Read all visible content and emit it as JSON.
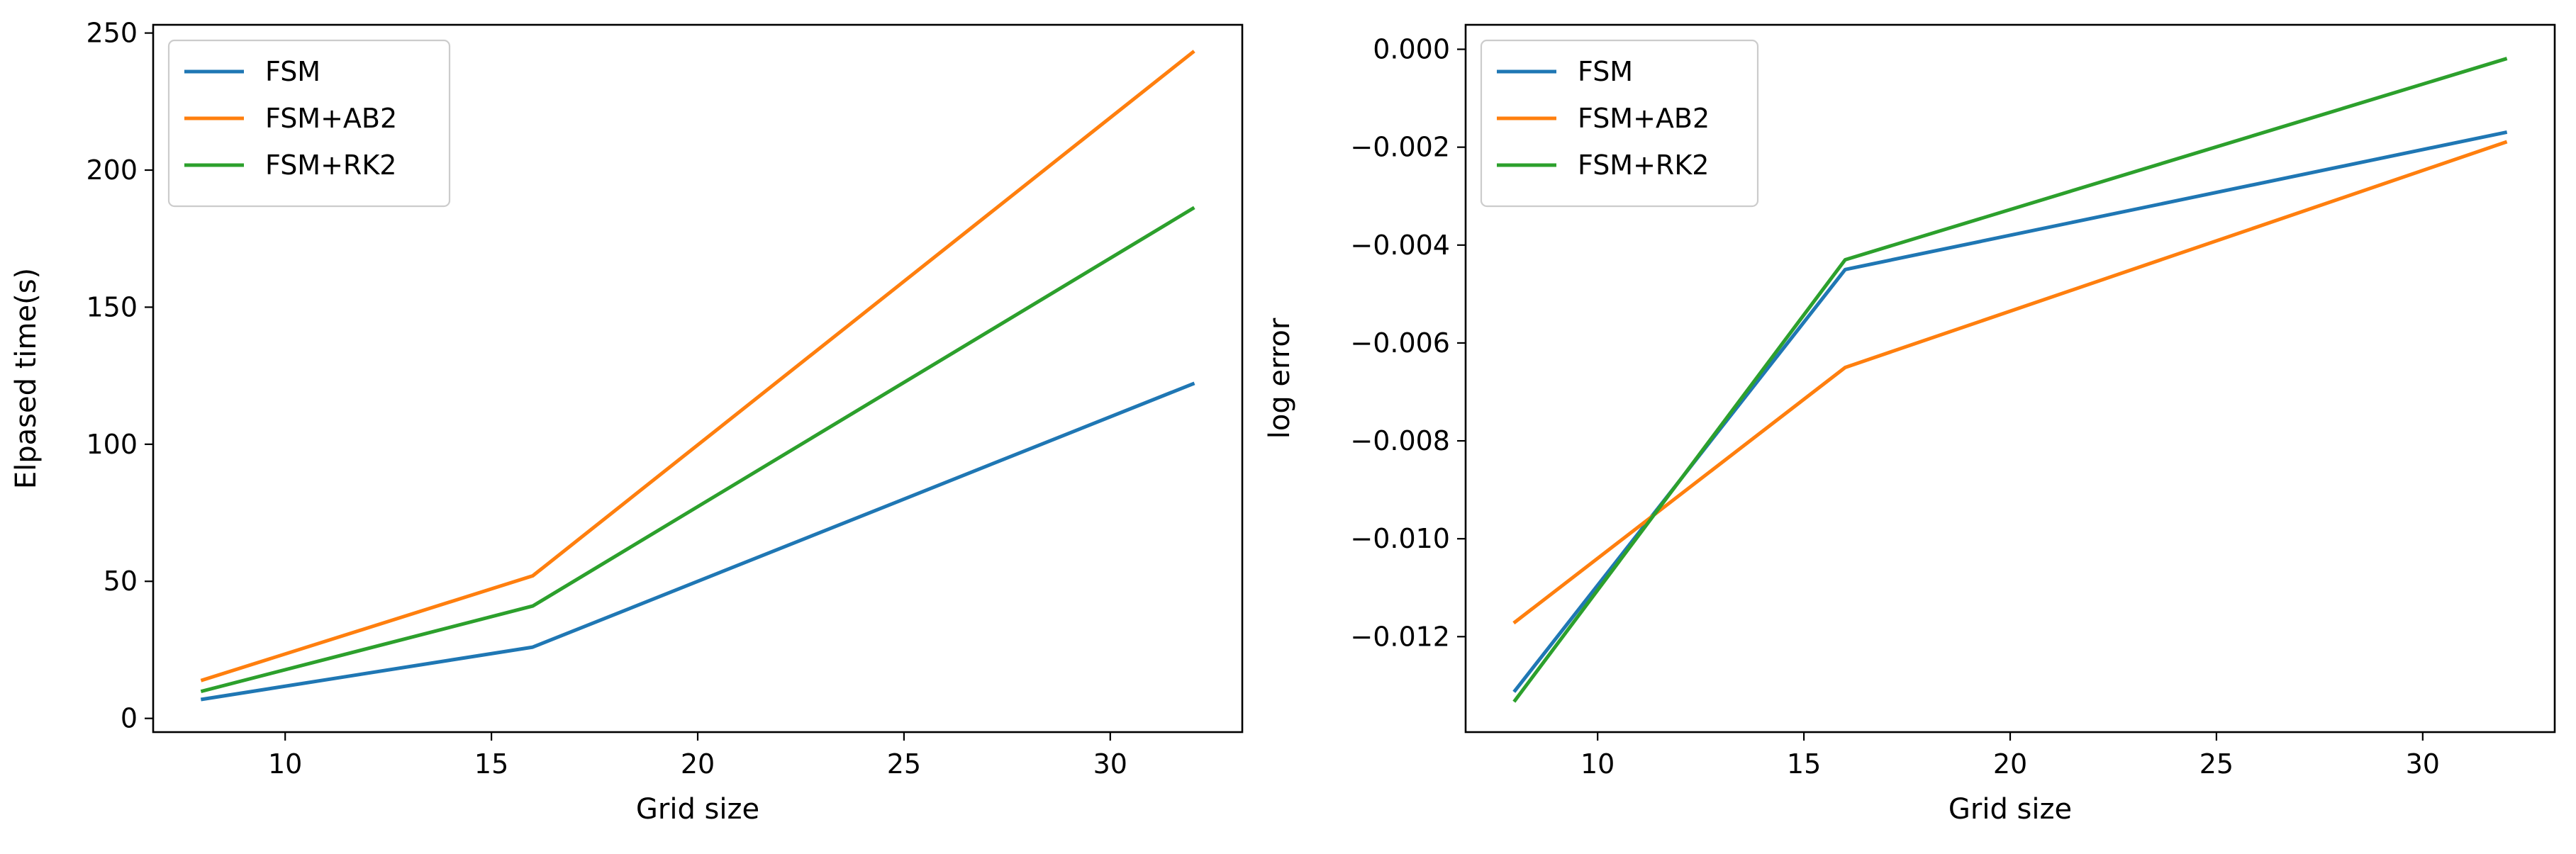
{
  "chart_data": [
    {
      "type": "line",
      "title": "",
      "xlabel": "Grid size",
      "ylabel": "Elpased time(s)",
      "xlim": [
        6.8,
        33.2
      ],
      "ylim": [
        -5,
        253
      ],
      "xticks": [
        10,
        15,
        20,
        25,
        30
      ],
      "xtick_labels": [
        "10",
        "15",
        "20",
        "25",
        "30"
      ],
      "yticks": [
        0,
        50,
        100,
        150,
        200,
        250
      ],
      "ytick_labels": [
        "0",
        "50",
        "100",
        "150",
        "200",
        "250"
      ],
      "grid": false,
      "legend_placement": "top-left",
      "x": [
        8,
        16,
        32
      ],
      "series": [
        {
          "name": "FSM",
          "color": "#1f77b4",
          "values": [
            7,
            26,
            122
          ]
        },
        {
          "name": "FSM+AB2",
          "color": "#ff7f0e",
          "values": [
            14,
            52,
            243
          ]
        },
        {
          "name": "FSM+RK2",
          "color": "#2ca02c",
          "values": [
            10,
            41,
            186
          ]
        }
      ]
    },
    {
      "type": "line",
      "title": "",
      "xlabel": "Grid size",
      "ylabel": "log error",
      "xlim": [
        6.8,
        33.2
      ],
      "ylim": [
        -0.01395,
        0.0005
      ],
      "xticks": [
        10,
        15,
        20,
        25,
        30
      ],
      "xtick_labels": [
        "10",
        "15",
        "20",
        "25",
        "30"
      ],
      "yticks": [
        0.0,
        -0.002,
        -0.004,
        -0.006,
        -0.008,
        -0.01,
        -0.012
      ],
      "ytick_labels": [
        "0.000",
        "−0.002",
        "−0.004",
        "−0.006",
        "−0.008",
        "−0.010",
        "−0.012"
      ],
      "grid": false,
      "legend_placement": "top-left",
      "x": [
        8,
        16,
        32
      ],
      "series": [
        {
          "name": "FSM",
          "color": "#1f77b4",
          "values": [
            -0.0131,
            -0.0045,
            -0.0017
          ]
        },
        {
          "name": "FSM+AB2",
          "color": "#ff7f0e",
          "values": [
            -0.0117,
            -0.0065,
            -0.0019
          ]
        },
        {
          "name": "FSM+RK2",
          "color": "#2ca02c",
          "values": [
            -0.0133,
            -0.0043,
            -0.0002
          ]
        }
      ]
    }
  ]
}
